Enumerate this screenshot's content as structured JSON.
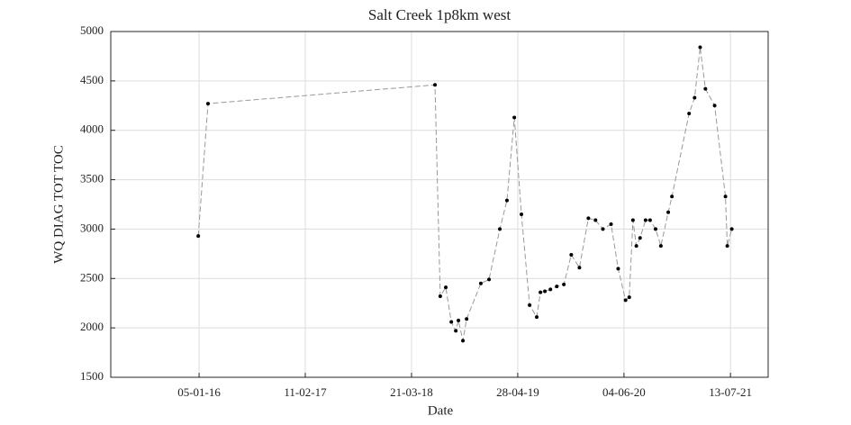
{
  "chart_data": {
    "type": "line",
    "title": "Salt Creek 1p8km west",
    "x_label": "Date",
    "y_label": "WQ DIAG TOT TOC",
    "x": [
      "2016-01-02",
      "2016-02-08",
      "2018-06-18",
      "2018-07-08",
      "2018-07-29",
      "2018-08-19",
      "2018-09-05",
      "2018-09-15",
      "2018-10-02",
      "2018-10-16",
      "2018-12-09",
      "2019-01-09",
      "2019-02-19",
      "2019-03-18",
      "2019-04-15",
      "2019-05-12",
      "2019-06-12",
      "2019-07-09",
      "2019-07-23",
      "2019-08-09",
      "2019-08-30",
      "2019-09-23",
      "2019-10-20",
      "2019-11-17",
      "2019-12-18",
      "2020-01-21",
      "2020-02-17",
      "2020-03-16",
      "2020-04-16",
      "2020-05-13",
      "2020-06-10",
      "2020-06-24",
      "2020-07-08",
      "2020-07-21",
      "2020-08-04",
      "2020-08-25",
      "2020-09-11",
      "2020-10-02",
      "2020-10-22",
      "2020-11-19",
      "2020-12-03",
      "2021-02-06",
      "2021-02-27",
      "2021-03-20",
      "2021-04-09",
      "2021-05-14",
      "2021-06-24",
      "2021-07-01",
      "2021-07-18"
    ],
    "series": [
      {
        "name": "WQ DIAG TOT TOC",
        "color": "#999999",
        "marker_color": "#000000",
        "values": [
          2930,
          4270,
          4460,
          2320,
          2410,
          2060,
          1970,
          2075,
          1870,
          2090,
          2450,
          2490,
          3000,
          3290,
          4130,
          3150,
          2230,
          2110,
          2360,
          2370,
          2390,
          2420,
          2440,
          2740,
          2610,
          3110,
          3090,
          3000,
          3050,
          2600,
          2280,
          2310,
          3090,
          2830,
          2910,
          3090,
          3090,
          3000,
          2830,
          3170,
          3330,
          4170,
          4330,
          4840,
          4420,
          4250,
          3330,
          2830,
          3000
        ]
      }
    ],
    "xlim": [
      "2015-02-04",
      "2021-12-03"
    ],
    "xticks": [
      {
        "value": "2016-01-05",
        "label": "05-01-16"
      },
      {
        "value": "2017-02-11",
        "label": "11-02-17"
      },
      {
        "value": "2018-03-21",
        "label": "21-03-18"
      },
      {
        "value": "2019-04-28",
        "label": "28-04-19"
      },
      {
        "value": "2020-06-04",
        "label": "04-06-20"
      },
      {
        "value": "2021-07-13",
        "label": "13-07-21"
      }
    ],
    "ylim": [
      1500,
      5000
    ],
    "yticks": [
      1500,
      2000,
      2500,
      3000,
      3500,
      4000,
      4500,
      5000
    ],
    "grid": true
  }
}
